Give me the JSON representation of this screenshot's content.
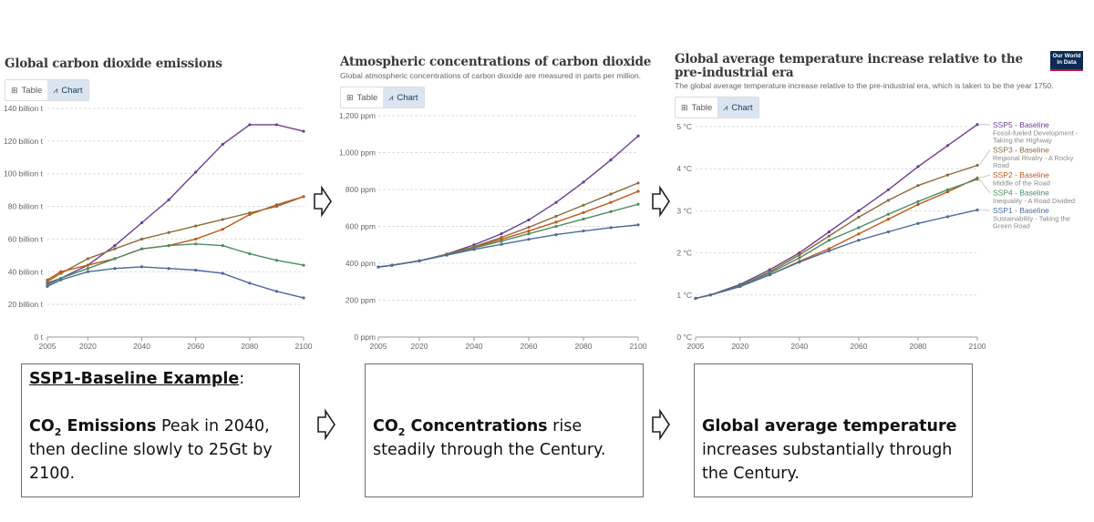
{
  "panels": [
    {
      "title": "Global carbon dioxide emissions",
      "subtitle": "",
      "tabs": [
        "Table",
        "Chart"
      ]
    },
    {
      "title": "Atmospheric concentrations of carbon dioxide",
      "subtitle": "Global atmospheric concentrations of carbon dioxide are measured in parts per million.",
      "tabs": [
        "Table",
        "Chart"
      ]
    },
    {
      "title": "Global average temperature increase relative to the pre-industrial era",
      "subtitle": "The global average temperature increase relative to the pre-industrial era, which is taken to be the year 1750.",
      "tabs": [
        "Table",
        "Chart"
      ],
      "logo": "Our World in Data"
    }
  ],
  "colors": {
    "SSP5": "#6d3e91",
    "SSP3": "#8c6b3a",
    "SSP2": "#c05917",
    "SSP4": "#4b8c63",
    "SSP1": "#4c6a9c"
  },
  "chart_data": [
    {
      "type": "line",
      "title": "Global carbon dioxide emissions",
      "xlabel": "",
      "ylabel": "",
      "x": [
        2005,
        2010,
        2020,
        2030,
        2040,
        2050,
        2060,
        2070,
        2080,
        2090,
        2100
      ],
      "xticks": [
        "2005",
        "2020",
        "2040",
        "2060",
        "2080",
        "2100"
      ],
      "xtick_values": [
        2005,
        2020,
        2040,
        2060,
        2080,
        2100
      ],
      "yticks": [
        "0 t",
        "20 billion t",
        "40 billion t",
        "60 billion t",
        "80 billion t",
        "100 billion t",
        "120 billion t",
        "140 billion t"
      ],
      "ytick_values": [
        0,
        20,
        40,
        60,
        80,
        100,
        120,
        140
      ],
      "xlim": [
        2005,
        2100
      ],
      "ylim": [
        0,
        140
      ],
      "grid": true,
      "series": [
        {
          "key": "SSP5",
          "values": [
            33,
            36,
            44,
            56,
            70,
            84,
            101,
            118,
            130,
            130,
            126
          ]
        },
        {
          "key": "SSP3",
          "values": [
            34,
            39,
            48,
            54,
            60,
            64,
            68,
            72,
            76,
            80,
            86
          ]
        },
        {
          "key": "SSP2",
          "values": [
            35,
            40,
            44,
            48,
            54,
            56,
            60,
            66,
            75,
            81,
            86
          ]
        },
        {
          "key": "SSP4",
          "values": [
            32,
            36,
            42,
            48,
            54,
            56,
            57,
            56,
            51,
            47,
            44
          ]
        },
        {
          "key": "SSP1",
          "values": [
            31,
            35,
            40,
            42,
            43,
            42,
            41,
            39,
            33,
            28,
            24
          ]
        }
      ]
    },
    {
      "type": "line",
      "title": "Atmospheric concentrations of carbon dioxide",
      "xlabel": "",
      "ylabel": "",
      "x": [
        2005,
        2010,
        2020,
        2030,
        2040,
        2050,
        2060,
        2070,
        2080,
        2090,
        2100
      ],
      "xticks": [
        "2005",
        "2020",
        "2040",
        "2060",
        "2080",
        "2100"
      ],
      "xtick_values": [
        2005,
        2020,
        2040,
        2060,
        2080,
        2100
      ],
      "yticks": [
        "0 ppm",
        "200 ppm",
        "400 ppm",
        "600 ppm",
        "800 ppm",
        "1,000 ppm",
        "1,200 ppm"
      ],
      "ytick_values": [
        0,
        200,
        400,
        600,
        800,
        1000,
        1200
      ],
      "xlim": [
        2005,
        2100
      ],
      "ylim": [
        0,
        1200
      ],
      "grid": true,
      "series": [
        {
          "key": "SSP5",
          "values": [
            380,
            389,
            413,
            450,
            500,
            560,
            635,
            730,
            840,
            960,
            1090
          ]
        },
        {
          "key": "SSP3",
          "values": [
            380,
            389,
            413,
            448,
            490,
            540,
            595,
            655,
            715,
            775,
            835
          ]
        },
        {
          "key": "SSP2",
          "values": [
            380,
            389,
            413,
            447,
            487,
            530,
            575,
            623,
            675,
            730,
            790
          ]
        },
        {
          "key": "SSP4",
          "values": [
            380,
            389,
            413,
            446,
            483,
            520,
            560,
            600,
            640,
            680,
            720
          ]
        },
        {
          "key": "SSP1",
          "values": [
            380,
            389,
            413,
            444,
            475,
            503,
            530,
            555,
            575,
            593,
            608
          ]
        }
      ]
    },
    {
      "type": "line",
      "title": "Global average temperature increase relative to the pre-industrial era",
      "xlabel": "",
      "ylabel": "",
      "x": [
        2005,
        2010,
        2020,
        2030,
        2040,
        2050,
        2060,
        2070,
        2080,
        2090,
        2100
      ],
      "xticks": [
        "2005",
        "2020",
        "2040",
        "2060",
        "2080",
        "2100"
      ],
      "xtick_values": [
        2005,
        2020,
        2040,
        2060,
        2080,
        2100
      ],
      "yticks": [
        "0 °C",
        "1 °C",
        "2 °C",
        "3 °C",
        "4 °C",
        "5 °C"
      ],
      "ytick_values": [
        0,
        1,
        2,
        3,
        4,
        5
      ],
      "xlim": [
        2005,
        2100
      ],
      "ylim": [
        0,
        5
      ],
      "grid": true,
      "legend_position": "right",
      "series": [
        {
          "key": "SSP5",
          "name": "SSP5 - Baseline",
          "description": [
            "Fossil-fueled Development -",
            "Taking the Highway"
          ],
          "values": [
            0.92,
            1.0,
            1.25,
            1.6,
            2.0,
            2.5,
            3.0,
            3.5,
            4.05,
            4.55,
            5.05
          ]
        },
        {
          "key": "SSP3",
          "name": "SSP3 - Baseline",
          "description": [
            "Regional Rivalry - A Rocky",
            "Road"
          ],
          "values": [
            0.92,
            1.0,
            1.22,
            1.55,
            1.95,
            2.4,
            2.85,
            3.25,
            3.6,
            3.85,
            4.08
          ]
        },
        {
          "key": "SSP2",
          "name": "SSP2 - Baseline",
          "description": [
            "Middle of the Road"
          ],
          "values": [
            0.92,
            1.0,
            1.2,
            1.48,
            1.8,
            2.1,
            2.45,
            2.8,
            3.15,
            3.45,
            3.78
          ]
        },
        {
          "key": "SSP4",
          "name": "SSP4 - Baseline",
          "description": [
            "Inequality - A Road Divided"
          ],
          "values": [
            0.92,
            1.0,
            1.22,
            1.52,
            1.88,
            2.3,
            2.6,
            2.92,
            3.22,
            3.5,
            3.75
          ]
        },
        {
          "key": "SSP1",
          "name": "SSP1 - Baseline",
          "description": [
            "Sustainability - Taking the",
            "Green Road"
          ],
          "values": [
            0.92,
            1.0,
            1.2,
            1.48,
            1.78,
            2.05,
            2.3,
            2.5,
            2.7,
            2.86,
            3.02
          ]
        }
      ]
    }
  ],
  "boxes": {
    "box1": {
      "heading": "SSP1-Baseline Example",
      "heading_suffix": ":",
      "bold_main": "CO",
      "bold_sub": "2",
      "bold_tail": " Emissions",
      "text": " Peak in 2040, then decline slowly to 25Gt by 2100."
    },
    "box2": {
      "bold_main": "CO",
      "bold_sub": "2",
      "bold_tail": " Concentrations",
      "text": " rise steadily through the Century."
    },
    "box3": {
      "bold": "Global average temperature",
      "text": " increases substantially through the Century."
    }
  }
}
